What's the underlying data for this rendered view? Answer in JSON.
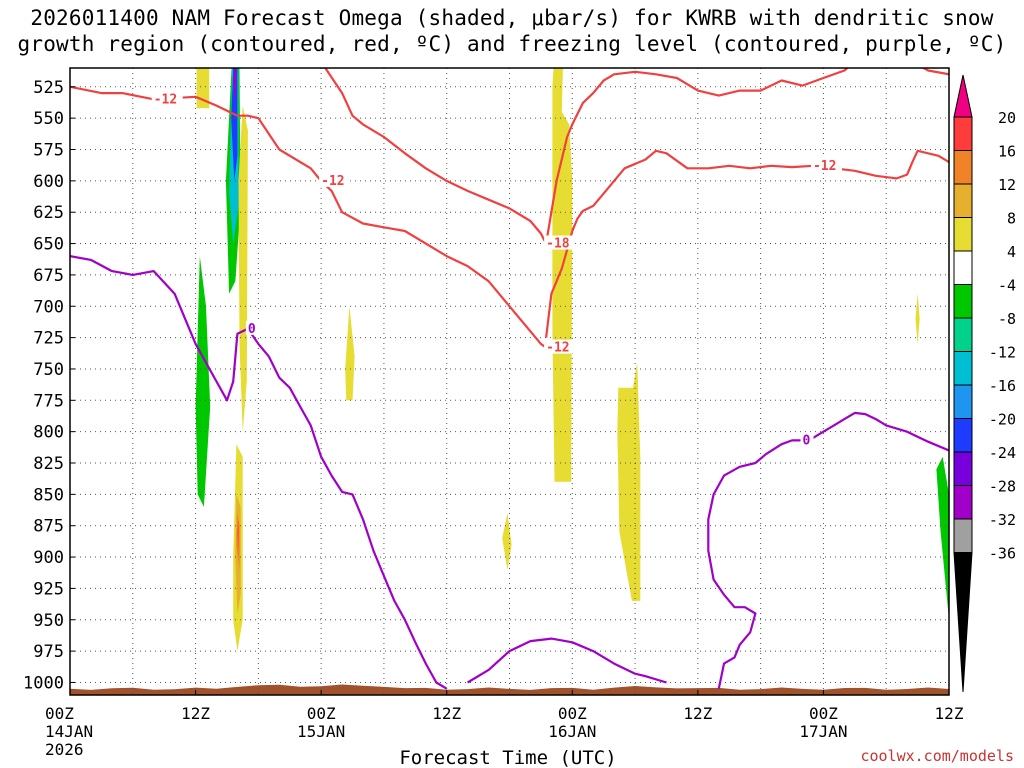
{
  "chart_data": {
    "type": "time-height cross section",
    "title_line1": "2026011400 NAM Forecast Omega (shaded, μbar/s) for KWRB with dendritic snow",
    "title_line2": "growth region (contoured, red, ºC) and freezing level (contoured, purple, ºC)",
    "xlabel": "Forecast Time (UTC)",
    "ylabel": "Pressure (hPa)",
    "credit": "coolwx.com/models",
    "x_hours_range": [
      0,
      84
    ],
    "ylim": [
      510,
      1010
    ],
    "x_ticks": [
      {
        "hour": 0,
        "line1": "00Z",
        "line2": "14JAN",
        "line3": "2026"
      },
      {
        "hour": 12,
        "line1": "12Z",
        "line2": "",
        "line3": ""
      },
      {
        "hour": 24,
        "line1": "00Z",
        "line2": "15JAN",
        "line3": ""
      },
      {
        "hour": 36,
        "line1": "12Z",
        "line2": "",
        "line3": ""
      },
      {
        "hour": 48,
        "line1": "00Z",
        "line2": "16JAN",
        "line3": ""
      },
      {
        "hour": 60,
        "line1": "12Z",
        "line2": "",
        "line3": ""
      },
      {
        "hour": 72,
        "line1": "00Z",
        "line2": "17JAN",
        "line3": ""
      },
      {
        "hour": 84,
        "line1": "12Z",
        "line2": "",
        "line3": ""
      }
    ],
    "y_ticks": [
      525,
      550,
      575,
      600,
      625,
      650,
      675,
      700,
      725,
      750,
      775,
      800,
      825,
      850,
      875,
      900,
      925,
      950,
      975,
      1000
    ],
    "colorbar": {
      "labels": [
        "20",
        "16",
        "12",
        "8",
        "4",
        "-4",
        "-8",
        "-12",
        "-16",
        "-20",
        "-24",
        "-28",
        "-32",
        "-36"
      ],
      "colors": [
        "#ff3c3c",
        "#f08228",
        "#e6af2d",
        "#e6dc32",
        "#ffffff",
        "#00c800",
        "#00d28c",
        "#00bfd2",
        "#1e96f0",
        "#1e3cff",
        "#7800dc",
        "#a000c8",
        "#a0a0a0"
      ],
      "top_arrow_color": "#f00082",
      "bottom_arrow_color": "#000000"
    },
    "shaded_regions": [
      {
        "level": "4",
        "color": "#e6dc32",
        "points": [
          [
            12.1,
            510
          ],
          [
            13.3,
            510
          ],
          [
            13.3,
            542
          ],
          [
            12.1,
            542
          ]
        ]
      },
      {
        "level": "-8",
        "color": "#00c800",
        "points": [
          [
            12.0,
            780
          ],
          [
            12.4,
            660
          ],
          [
            13.0,
            700
          ],
          [
            13.4,
            780
          ],
          [
            12.8,
            860
          ],
          [
            12.2,
            850
          ]
        ]
      },
      {
        "level": "-8",
        "color": "#00c800",
        "points": [
          [
            14.9,
            600
          ],
          [
            15.5,
            500
          ],
          [
            16.2,
            510
          ],
          [
            16.3,
            620
          ],
          [
            15.8,
            680
          ],
          [
            15.2,
            690
          ]
        ]
      },
      {
        "level": "-16",
        "color": "#00bfd2",
        "points": [
          [
            15.2,
            610
          ],
          [
            15.5,
            510
          ],
          [
            16.1,
            510
          ],
          [
            16.1,
            620
          ],
          [
            15.6,
            650
          ]
        ]
      },
      {
        "level": "-24",
        "color": "#1e3cff",
        "points": [
          [
            15.4,
            550
          ],
          [
            15.6,
            510
          ],
          [
            16.0,
            510
          ],
          [
            16.0,
            580
          ],
          [
            15.7,
            600
          ]
        ]
      },
      {
        "level": "-32",
        "color": "#a000c8",
        "points": [
          [
            15.6,
            520
          ],
          [
            15.7,
            510
          ],
          [
            15.9,
            510
          ],
          [
            15.9,
            540
          ]
        ]
      },
      {
        "level": "4",
        "color": "#e6dc32",
        "points": [
          [
            16.1,
            600
          ],
          [
            16.5,
            540
          ],
          [
            17.0,
            560
          ],
          [
            16.9,
            760
          ],
          [
            16.5,
            800
          ],
          [
            16.2,
            730
          ]
        ]
      },
      {
        "level": "4",
        "color": "#e6dc32",
        "points": [
          [
            15.6,
            900
          ],
          [
            15.9,
            810
          ],
          [
            16.5,
            820
          ],
          [
            16.5,
            950
          ],
          [
            16.0,
            975
          ],
          [
            15.6,
            950
          ]
        ]
      },
      {
        "level": "8",
        "color": "#e6af2d",
        "points": [
          [
            15.8,
            900
          ],
          [
            15.9,
            850
          ],
          [
            16.3,
            860
          ],
          [
            16.3,
            930
          ],
          [
            16.0,
            945
          ]
        ]
      },
      {
        "level": "12",
        "color": "#f08228",
        "points": [
          [
            15.9,
            890
          ],
          [
            16.0,
            865
          ],
          [
            16.2,
            875
          ],
          [
            16.2,
            910
          ]
        ]
      },
      {
        "level": "20",
        "color": "#ff3c3c",
        "points": [
          [
            16.0,
            880
          ],
          [
            16.1,
            870
          ],
          [
            16.1,
            895
          ]
        ]
      },
      {
        "level": "4",
        "color": "#e6dc32",
        "points": [
          [
            26.3,
            750
          ],
          [
            26.7,
            700
          ],
          [
            27.2,
            740
          ],
          [
            27.0,
            775
          ],
          [
            26.4,
            775
          ]
        ]
      },
      {
        "level": "4",
        "color": "#e6dc32",
        "points": [
          [
            41.3,
            885
          ],
          [
            41.8,
            865
          ],
          [
            42.2,
            890
          ],
          [
            41.8,
            910
          ]
        ]
      },
      {
        "level": "4",
        "color": "#e6dc32",
        "points": [
          [
            46.1,
            525
          ],
          [
            46.2,
            510
          ],
          [
            47.1,
            510
          ],
          [
            47.0,
            545
          ],
          [
            47.7,
            555
          ],
          [
            48.0,
            600
          ],
          [
            47.9,
            840
          ],
          [
            46.3,
            840
          ],
          [
            46.1,
            720
          ]
        ]
      },
      {
        "level": "4",
        "color": "#e6dc32",
        "points": [
          [
            52.3,
            800
          ],
          [
            52.4,
            765
          ],
          [
            53.8,
            765
          ],
          [
            54.2,
            745
          ],
          [
            54.5,
            820
          ],
          [
            54.5,
            935
          ],
          [
            53.7,
            935
          ],
          [
            52.5,
            880
          ]
        ]
      },
      {
        "level": "4",
        "color": "#e6dc32",
        "points": [
          [
            80.8,
            710
          ],
          [
            81.0,
            690
          ],
          [
            81.2,
            710
          ],
          [
            81.0,
            730
          ]
        ]
      },
      {
        "level": "-8",
        "color": "#00c800",
        "points": [
          [
            82.8,
            830
          ],
          [
            83.4,
            820
          ],
          [
            84.0,
            850
          ],
          [
            84.0,
            950
          ],
          [
            83.2,
            880
          ]
        ]
      }
    ],
    "contours": [
      {
        "name": "dendritic growth -12C (upper)",
        "color": "#f04040",
        "label": "-12",
        "points": [
          [
            0,
            525
          ],
          [
            3,
            530
          ],
          [
            5,
            530
          ],
          [
            8,
            535
          ],
          [
            12,
            533
          ],
          [
            14,
            540
          ],
          [
            16,
            548
          ],
          [
            17,
            548
          ],
          [
            18,
            550
          ],
          [
            20,
            575
          ],
          [
            23,
            590
          ],
          [
            24,
            600
          ],
          [
            25,
            608
          ],
          [
            26,
            625
          ],
          [
            28,
            634
          ],
          [
            30,
            637
          ],
          [
            32,
            640
          ],
          [
            34,
            650
          ],
          [
            36,
            660
          ],
          [
            38,
            668
          ],
          [
            40,
            680
          ],
          [
            42,
            700
          ],
          [
            44,
            720
          ],
          [
            45,
            730
          ],
          [
            45.5,
            733
          ]
        ]
      },
      {
        "name": "dendritic growth -12C (lower)",
        "color": "#f04040",
        "label": "-12",
        "points": [
          [
            45.5,
            725
          ],
          [
            46,
            690
          ],
          [
            47,
            670
          ],
          [
            47.5,
            655
          ],
          [
            48,
            640
          ],
          [
            48.5,
            630
          ],
          [
            49,
            624
          ],
          [
            50,
            620
          ],
          [
            51,
            610
          ],
          [
            52,
            600
          ],
          [
            53,
            590
          ],
          [
            55,
            583
          ],
          [
            56,
            576
          ],
          [
            57,
            578
          ],
          [
            59,
            590
          ],
          [
            61,
            590
          ],
          [
            63,
            588
          ],
          [
            65,
            590
          ],
          [
            67,
            588
          ],
          [
            69,
            589
          ],
          [
            71,
            588
          ],
          [
            73,
            590
          ],
          [
            75,
            592
          ],
          [
            77,
            596
          ],
          [
            79,
            598
          ],
          [
            80,
            595
          ],
          [
            80.5,
            585
          ],
          [
            81,
            576
          ],
          [
            83,
            580
          ],
          [
            84,
            585
          ]
        ]
      },
      {
        "name": "dendritic growth -18C",
        "color": "#f04040",
        "label": "-18",
        "points": [
          [
            24,
            505
          ],
          [
            26,
            530
          ],
          [
            27,
            548
          ],
          [
            28,
            555
          ],
          [
            30,
            565
          ],
          [
            32,
            578
          ],
          [
            34,
            590
          ],
          [
            36,
            600
          ],
          [
            38,
            608
          ],
          [
            40,
            615
          ],
          [
            42,
            622
          ],
          [
            44,
            632
          ],
          [
            45,
            642
          ],
          [
            45.5,
            650
          ],
          [
            46.5,
            600
          ],
          [
            47.5,
            565
          ],
          [
            48,
            555
          ],
          [
            49,
            538
          ],
          [
            50,
            530
          ],
          [
            51,
            520
          ],
          [
            52,
            515
          ],
          [
            54,
            513
          ],
          [
            56,
            515
          ],
          [
            58,
            518
          ],
          [
            60,
            528
          ],
          [
            62,
            532
          ],
          [
            64,
            528
          ],
          [
            66,
            528
          ],
          [
            68,
            520
          ],
          [
            70,
            524
          ],
          [
            72,
            518
          ],
          [
            74,
            512
          ],
          [
            75,
            505
          ]
        ]
      },
      {
        "name": "dendritic growth -18C (upper right)",
        "color": "#f04040",
        "label": "",
        "points": [
          [
            80.5,
            505
          ],
          [
            82,
            512
          ],
          [
            84,
            515
          ]
        ]
      },
      {
        "name": "freezing level 0C",
        "color": "#a000c8",
        "label": "0",
        "points": [
          [
            0,
            660
          ],
          [
            2,
            663
          ],
          [
            4,
            672
          ],
          [
            6,
            675
          ],
          [
            8,
            672
          ],
          [
            10,
            690
          ],
          [
            11,
            710
          ],
          [
            12,
            730
          ],
          [
            13,
            745
          ],
          [
            14,
            760
          ],
          [
            15,
            775
          ],
          [
            15.6,
            760
          ],
          [
            16.0,
            722
          ],
          [
            17,
            718
          ],
          [
            18,
            730
          ],
          [
            19,
            740
          ],
          [
            20,
            757
          ],
          [
            21,
            765
          ],
          [
            22,
            780
          ],
          [
            23,
            795
          ],
          [
            24,
            820
          ],
          [
            25,
            835
          ],
          [
            26,
            848
          ],
          [
            27,
            850
          ],
          [
            28,
            870
          ],
          [
            29,
            895
          ],
          [
            30,
            915
          ],
          [
            31,
            935
          ],
          [
            32,
            950
          ],
          [
            33,
            968
          ],
          [
            34,
            985
          ],
          [
            35,
            1000
          ],
          [
            36,
            1005
          ]
        ]
      },
      {
        "name": "freezing level 0C (right lobe)",
        "color": "#a000c8",
        "label": "0",
        "points": [
          [
            38,
            1000
          ],
          [
            40,
            990
          ],
          [
            42,
            975
          ],
          [
            44,
            967
          ],
          [
            46,
            965
          ],
          [
            48,
            968
          ],
          [
            50,
            975
          ],
          [
            52,
            985
          ],
          [
            54,
            993
          ],
          [
            55,
            995
          ],
          [
            57,
            1000
          ]
        ]
      },
      {
        "name": "freezing level 0C (late period)",
        "color": "#a000c8",
        "label": "0",
        "points": [
          [
            62,
            1005
          ],
          [
            62.5,
            985
          ],
          [
            63.5,
            980
          ],
          [
            64,
            970
          ],
          [
            65,
            960
          ],
          [
            65.5,
            945
          ],
          [
            64.5,
            940
          ],
          [
            63.5,
            940
          ],
          [
            62.5,
            930
          ],
          [
            61.5,
            918
          ],
          [
            61,
            895
          ],
          [
            61,
            870
          ],
          [
            61.5,
            850
          ],
          [
            62.5,
            835
          ],
          [
            64,
            828
          ],
          [
            65.5,
            825
          ],
          [
            66.5,
            818
          ],
          [
            68,
            810
          ],
          [
            69,
            807
          ],
          [
            70,
            807
          ],
          [
            71,
            805
          ],
          [
            72,
            800
          ],
          [
            73,
            795
          ],
          [
            74,
            790
          ],
          [
            75,
            785
          ],
          [
            76,
            786
          ],
          [
            77,
            790
          ],
          [
            78,
            795
          ],
          [
            80,
            800
          ],
          [
            82,
            808
          ],
          [
            84,
            815
          ]
        ]
      }
    ],
    "terrain": {
      "color": "#a0522d",
      "surface_pressure_hpa": 1005
    }
  }
}
